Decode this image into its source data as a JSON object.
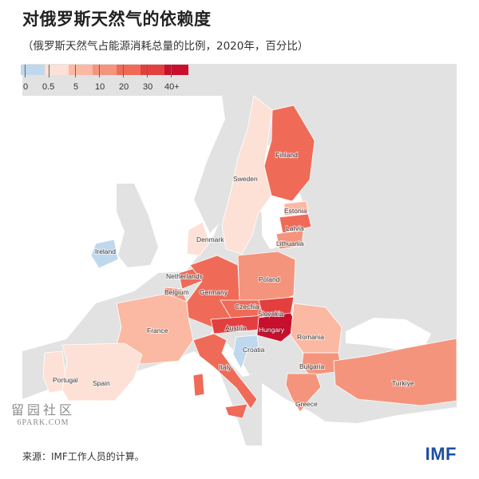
{
  "title": "对俄罗斯天然气的依赖度",
  "subtitle": "（俄罗斯天然气占能源消耗总量的比例，2020年，百分比）",
  "legend": {
    "ticks": [
      "0",
      "0.5",
      "5",
      "10",
      "20",
      "30",
      "40+"
    ],
    "colors": [
      "#bfd8ee",
      "#fde0d6",
      "#fbb8a3",
      "#f5947c",
      "#ef6b58",
      "#e43f3f",
      "#c8102e"
    ]
  },
  "colors": {
    "sea": "#ffffff",
    "no_data_land": "#e2e2e2",
    "border": "#ffffff"
  },
  "countries": [
    {
      "name": "Finland",
      "bin": 4
    },
    {
      "name": "Sweden",
      "bin": 1
    },
    {
      "name": "Estonia",
      "bin": 2
    },
    {
      "name": "Latvia",
      "bin": 4
    },
    {
      "name": "Lithuania",
      "bin": 3
    },
    {
      "name": "Denmark",
      "bin": 1
    },
    {
      "name": "Ireland",
      "bin": 0
    },
    {
      "name": "Netherlands",
      "bin": 4
    },
    {
      "name": "Belgium",
      "bin": 3
    },
    {
      "name": "Germany",
      "bin": 4
    },
    {
      "name": "Poland",
      "bin": 3
    },
    {
      "name": "Czechia",
      "bin": 4
    },
    {
      "name": "Slovakia",
      "bin": 5
    },
    {
      "name": "Austria",
      "bin": 5
    },
    {
      "name": "Hungary",
      "bin": 6
    },
    {
      "name": "Romania",
      "bin": 2
    },
    {
      "name": "France",
      "bin": 2
    },
    {
      "name": "Croatia",
      "bin": 0
    },
    {
      "name": "Italy",
      "bin": 4
    },
    {
      "name": "Bulgaria",
      "bin": 3
    },
    {
      "name": "Portugal",
      "bin": 1
    },
    {
      "name": "Spain",
      "bin": 1
    },
    {
      "name": "Greece",
      "bin": 3
    },
    {
      "name": "Turkiye",
      "bin": 3
    }
  ],
  "source": "来源：IMF工作人员的计算。",
  "logo": "IMF",
  "watermark": {
    "line1": "留园社区",
    "line2": "6PARK.COM"
  }
}
